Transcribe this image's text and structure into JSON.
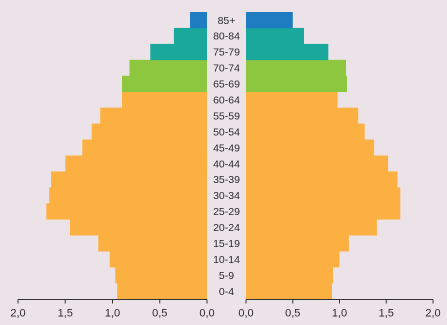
{
  "chart_data": {
    "type": "bar",
    "orientation": "horizontal",
    "layout": "population-pyramid",
    "title": "",
    "xlabel": "",
    "ylabel": "",
    "categories": [
      "0-4",
      "5-9",
      "10-14",
      "15-19",
      "20-24",
      "25-29",
      "30-34",
      "35-39",
      "40-44",
      "45-49",
      "50-54",
      "55-59",
      "60-64",
      "65-69",
      "70-74",
      "75-79",
      "80-84",
      "85+"
    ],
    "series": [
      {
        "side": "left",
        "values": [
          0.95,
          0.97,
          1.03,
          1.15,
          1.45,
          1.7,
          1.67,
          1.65,
          1.5,
          1.32,
          1.22,
          1.13,
          0.9,
          0.9,
          0.82,
          0.6,
          0.35,
          0.18
        ]
      },
      {
        "side": "right",
        "values": [
          0.92,
          0.93,
          1.0,
          1.1,
          1.4,
          1.65,
          1.65,
          1.62,
          1.52,
          1.37,
          1.27,
          1.2,
          0.98,
          1.08,
          1.07,
          0.88,
          0.62,
          0.5
        ]
      }
    ],
    "age_group_colors": [
      {
        "from": "0-4",
        "to": "60-64",
        "color": "#fbb041"
      },
      {
        "from": "65-69",
        "to": "74-74",
        "color": "#8dc63f"
      },
      {
        "from": "75-79",
        "to": "80-84",
        "color": "#1aa89c"
      },
      {
        "from": "85+",
        "to": "85+",
        "color": "#1f7cc1"
      }
    ],
    "xlim_left": [
      2.0,
      0.0
    ],
    "xlim_right": [
      0.0,
      2.0
    ],
    "x_ticks_left": [
      "2,0",
      "1,5",
      "1,0",
      "0,5",
      "0,0"
    ],
    "x_ticks_right": [
      "0,0",
      "0,5",
      "1,0",
      "1,5",
      "2,0"
    ],
    "grid": false,
    "legend": "none"
  }
}
